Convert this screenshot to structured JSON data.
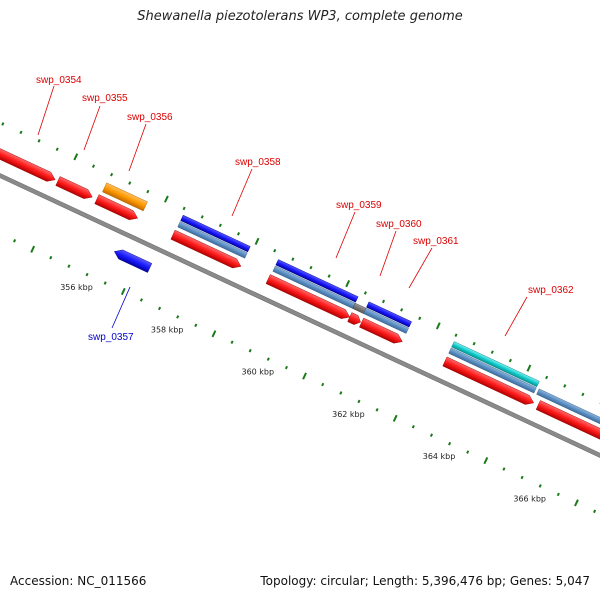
{
  "title": "Shewanella piezotolerans WP3, complete genome",
  "footer": {
    "accession": "Accession: NC_011566",
    "stats": "Topology: circular; Length: 5,396,476 bp; Genes: 5,047"
  },
  "colors": {
    "forward_cds": "#ff1a1a",
    "reverse_cds": "#1a1aff",
    "orange_gene": "#ff9900",
    "cyan_gene": "#11cccc",
    "steelblue": "#5b8ec2",
    "gray_block": "#666666",
    "backbone": "#888888",
    "ticks": "#1a7a1a",
    "label_forward": "#dd0000",
    "label_reverse": "#0000cc"
  },
  "scale_labels": [
    "356 kbp",
    "358 kbp",
    "360 kbp",
    "362 kbp",
    "364 kbp",
    "366 kbp"
  ],
  "genes": [
    {
      "name": "swp_0354",
      "color": "red"
    },
    {
      "name": "swp_0355",
      "color": "red"
    },
    {
      "name": "swp_0356",
      "color": "red"
    },
    {
      "name": "swp_0357",
      "color": "blue"
    },
    {
      "name": "swp_0358",
      "color": "red"
    },
    {
      "name": "swp_0359",
      "color": "red"
    },
    {
      "name": "swp_0360",
      "color": "red"
    },
    {
      "name": "swp_0361",
      "color": "red"
    },
    {
      "name": "swp_0362",
      "color": "red"
    }
  ]
}
